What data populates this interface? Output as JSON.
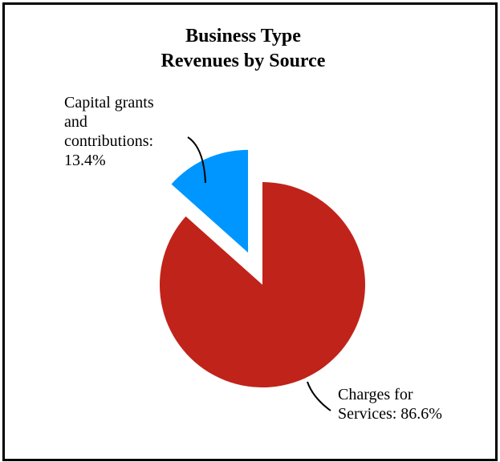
{
  "chart_data": {
    "type": "pie",
    "title": [
      "Business Type",
      "Revenues by Source"
    ],
    "slices": [
      {
        "label": "Charges for Services",
        "label_lines": [
          "Charges for",
          "Services: 86.6%"
        ],
        "value": 86.6,
        "color": "#c0231a"
      },
      {
        "label": "Capital grants and contributions",
        "label_lines": [
          "Capital grants",
          "and",
          "contributions:",
          "13.4%"
        ],
        "value": 13.4,
        "color": "#0096ff",
        "exploded": true
      }
    ],
    "legend": "none"
  }
}
